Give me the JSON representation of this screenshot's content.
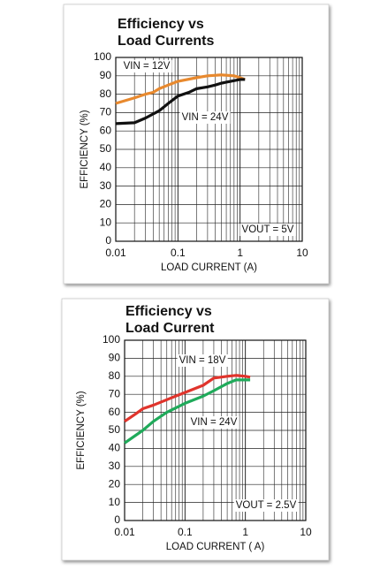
{
  "chart_data": [
    {
      "type": "line",
      "title": [
        "Efficiency vs",
        "Load Currents"
      ],
      "xlabel": "LOAD CURRENT (A)",
      "ylabel": "EFFICIENCY (%)",
      "xscale": "log",
      "xlim": [
        0.01,
        10
      ],
      "xticks": [
        0.01,
        0.1,
        1,
        10
      ],
      "ylim": [
        0,
        100
      ],
      "yticks": [
        0,
        10,
        20,
        30,
        40,
        50,
        60,
        70,
        80,
        90,
        100
      ],
      "grid": true,
      "series": [
        {
          "name": "VIN = 12V",
          "color": "#e8892e",
          "x": [
            0.01,
            0.02,
            0.03,
            0.04,
            0.05,
            0.07,
            0.1,
            0.2,
            0.3,
            0.5,
            0.8,
            1,
            1.2
          ],
          "values": [
            75,
            78,
            80,
            81,
            83,
            85,
            87,
            89,
            90,
            90.5,
            90,
            89,
            88
          ]
        },
        {
          "name": "VIN = 24V",
          "color": "#111111",
          "x": [
            0.01,
            0.02,
            0.03,
            0.05,
            0.07,
            0.1,
            0.15,
            0.2,
            0.3,
            0.4,
            0.5,
            0.7,
            1,
            1.2
          ],
          "values": [
            64,
            64.5,
            67,
            71,
            75,
            79,
            81,
            83,
            84,
            85,
            86,
            87,
            88,
            88
          ]
        }
      ],
      "annotation": "VOUT = 5V"
    },
    {
      "type": "line",
      "title": [
        "Efficiency vs",
        "Load Current"
      ],
      "xlabel": "LOAD CURRENT ( A)",
      "ylabel": "EFFICIENCY (%)",
      "xscale": "log",
      "xlim": [
        0.01,
        10
      ],
      "xticks": [
        0.01,
        0.1,
        1,
        10
      ],
      "ylim": [
        0,
        100
      ],
      "yticks": [
        0,
        10,
        20,
        30,
        40,
        50,
        60,
        70,
        80,
        90,
        100
      ],
      "grid": true,
      "series": [
        {
          "name": "VIN = 18V",
          "color": "#e0342c",
          "x": [
            0.01,
            0.015,
            0.02,
            0.03,
            0.05,
            0.07,
            0.1,
            0.2,
            0.3,
            0.5,
            0.7,
            1,
            1.2
          ],
          "values": [
            55,
            59,
            62,
            64,
            67,
            69,
            71,
            75,
            79,
            80,
            80.5,
            80,
            79.5
          ]
        },
        {
          "name": "VIN = 24V",
          "color": "#1faa5a",
          "x": [
            0.01,
            0.02,
            0.03,
            0.05,
            0.1,
            0.2,
            0.3,
            0.5,
            0.7,
            1,
            1.2
          ],
          "values": [
            43,
            50,
            55,
            60,
            65,
            69,
            72,
            76,
            78,
            78,
            78
          ]
        }
      ],
      "annotation": "VOUT = 2.5V"
    }
  ]
}
